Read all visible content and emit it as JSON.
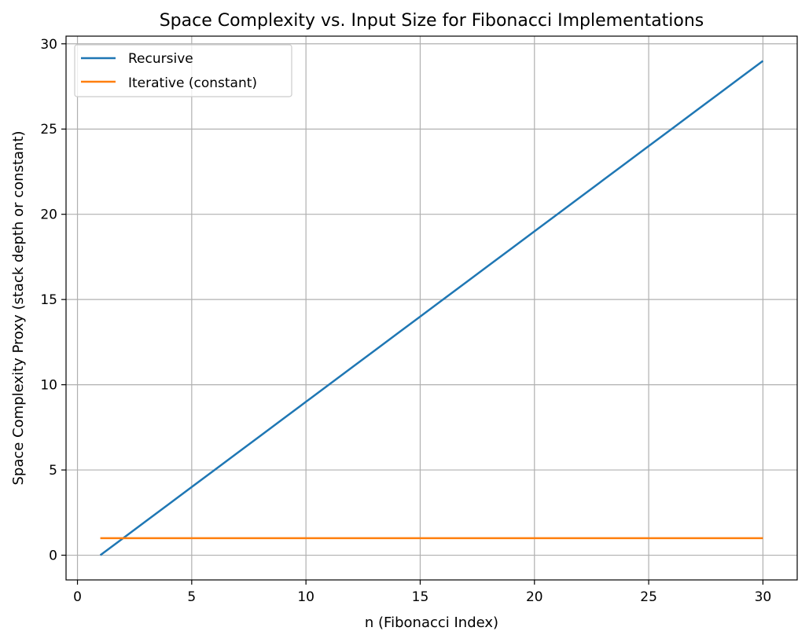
{
  "chart_data": {
    "type": "line",
    "title": "Space Complexity vs. Input Size for Fibonacci Implementations",
    "xlabel": "n (Fibonacci Index)",
    "ylabel": "Space Complexity Proxy (stack depth or constant)",
    "xlim": [
      -0.5,
      31.5
    ],
    "ylim": [
      -1.45,
      30.45
    ],
    "xticks": [
      0,
      5,
      10,
      15,
      20,
      25,
      30
    ],
    "yticks": [
      0,
      5,
      10,
      15,
      20,
      25,
      30
    ],
    "grid": true,
    "legend_position": "top-left",
    "x": [
      1,
      2,
      3,
      4,
      5,
      6,
      7,
      8,
      9,
      10,
      11,
      12,
      13,
      14,
      15,
      16,
      17,
      18,
      19,
      20,
      21,
      22,
      23,
      24,
      25,
      26,
      27,
      28,
      29,
      30
    ],
    "series": [
      {
        "name": "Recursive",
        "color": "#1f77b4",
        "values": [
          0,
          1,
          2,
          3,
          4,
          5,
          6,
          7,
          8,
          9,
          10,
          11,
          12,
          13,
          14,
          15,
          16,
          17,
          18,
          19,
          20,
          21,
          22,
          23,
          24,
          25,
          26,
          27,
          28,
          29
        ]
      },
      {
        "name": "Iterative (constant)",
        "color": "#ff7f0e",
        "values": [
          1,
          1,
          1,
          1,
          1,
          1,
          1,
          1,
          1,
          1,
          1,
          1,
          1,
          1,
          1,
          1,
          1,
          1,
          1,
          1,
          1,
          1,
          1,
          1,
          1,
          1,
          1,
          1,
          1,
          1
        ]
      }
    ]
  }
}
